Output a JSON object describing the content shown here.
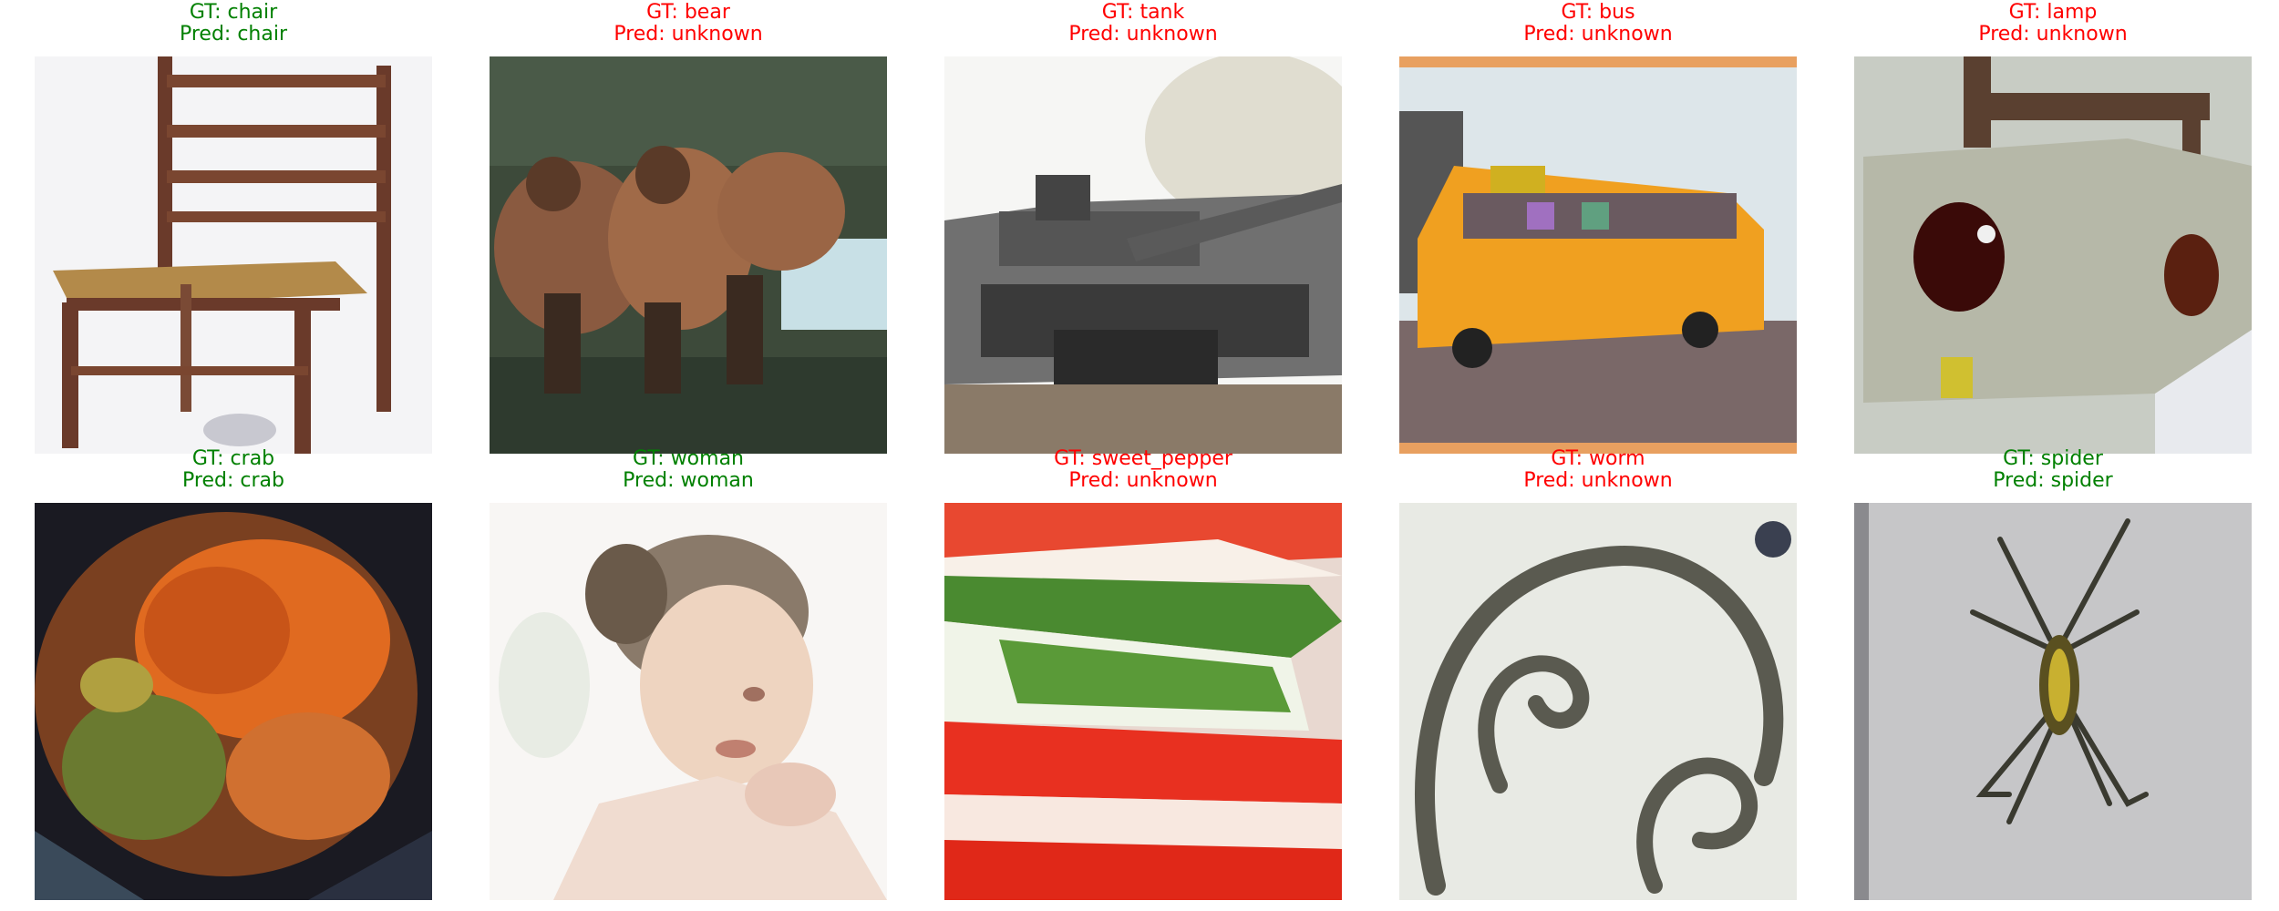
{
  "colors": {
    "correct": "#008000",
    "incorrect": "#ff0000"
  },
  "samples": [
    {
      "gt": "GT: chair",
      "pred": "Pred: chair",
      "correct": true,
      "icon": "chair-image"
    },
    {
      "gt": "GT: bear",
      "pred": "Pred: unknown",
      "correct": false,
      "icon": "bear-image"
    },
    {
      "gt": "GT: tank",
      "pred": "Pred: unknown",
      "correct": false,
      "icon": "tank-image"
    },
    {
      "gt": "GT: bus",
      "pred": "Pred: unknown",
      "correct": false,
      "icon": "bus-image"
    },
    {
      "gt": "GT: lamp",
      "pred": "Pred: unknown",
      "correct": false,
      "icon": "lamp-image"
    },
    {
      "gt": "GT: crab",
      "pred": "Pred: crab",
      "correct": true,
      "icon": "crab-image"
    },
    {
      "gt": "GT: woman",
      "pred": "Pred: woman",
      "correct": true,
      "icon": "woman-image"
    },
    {
      "gt": "GT: sweet_pepper",
      "pred": "Pred: unknown",
      "correct": false,
      "icon": "sweet-pepper-image"
    },
    {
      "gt": "GT: worm",
      "pred": "Pred: unknown",
      "correct": false,
      "icon": "worm-image"
    },
    {
      "gt": "GT: spider",
      "pred": "Pred: spider",
      "correct": true,
      "icon": "spider-image"
    }
  ]
}
